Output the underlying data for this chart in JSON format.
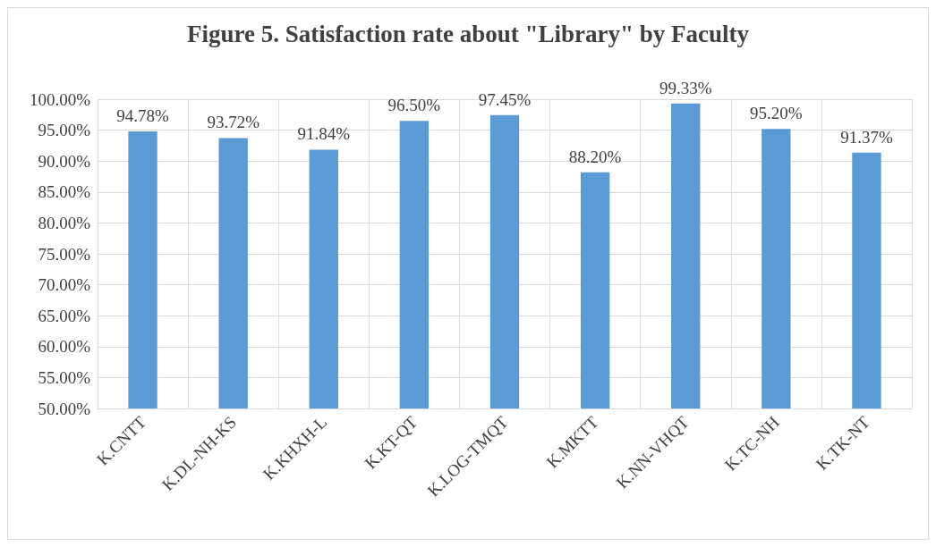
{
  "chart_data": {
    "type": "bar",
    "title": "Figure 5. Satisfaction rate about \"Library\" by Faculty",
    "categories": [
      "K.CNTT",
      "K.DL-NH-KS",
      "K.KHXH-L",
      "K.KT-QT",
      "K.LOG-TMQT",
      "K.MKTT",
      "K.NN-VHQT",
      "K.TC-NH",
      "K.TK-NT"
    ],
    "values": [
      94.78,
      93.72,
      91.84,
      96.5,
      97.45,
      88.2,
      99.33,
      95.2,
      91.37
    ],
    "value_labels": [
      "94.78%",
      "93.72%",
      "91.84%",
      "96.50%",
      "97.45%",
      "88.20%",
      "99.33%",
      "95.20%",
      "91.37%"
    ],
    "color": "#5b9bd5",
    "ylim": [
      50,
      100
    ],
    "yticks": [
      {
        "value": 50,
        "label": "50.00%"
      },
      {
        "value": 55,
        "label": "55.00%"
      },
      {
        "value": 60,
        "label": "60.00%"
      },
      {
        "value": 65,
        "label": "65.00%"
      },
      {
        "value": 70,
        "label": "70.00%"
      },
      {
        "value": 75,
        "label": "75.00%"
      },
      {
        "value": 80,
        "label": "80.00%"
      },
      {
        "value": 85,
        "label": "85.00%"
      },
      {
        "value": 90,
        "label": "90.00%"
      },
      {
        "value": 95,
        "label": "95.00%"
      },
      {
        "value": 100,
        "label": "100.00%"
      }
    ],
    "grid": true
  }
}
